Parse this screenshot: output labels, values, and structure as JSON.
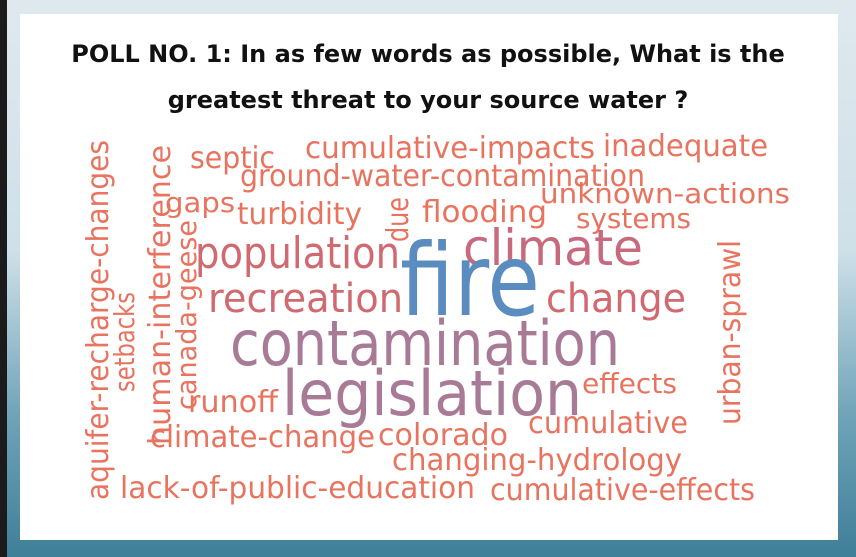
{
  "poll": {
    "title_lines": [
      "POLL NO. 1: In as few words as possible, What is the",
      "greatest threat to your source water ?"
    ]
  },
  "words": [
    "septic",
    "cumulative-impacts",
    "inadequate",
    "ground-water-contamination",
    "unknown-actions",
    "gaps",
    "turbidity",
    "due",
    "flooding",
    "systems",
    "population",
    "climate",
    "fire",
    "recreation",
    "change",
    "contamination",
    "legislation",
    "effects",
    "runoff",
    "cumulative",
    "climate-change",
    "colorado",
    "changing-hydrology",
    "lack-of-public-education",
    "cumulative-effects",
    "aquifer-recharge-changes",
    "human-interference",
    "setbacks",
    "canada-geese",
    "urban-sprawl"
  ]
}
